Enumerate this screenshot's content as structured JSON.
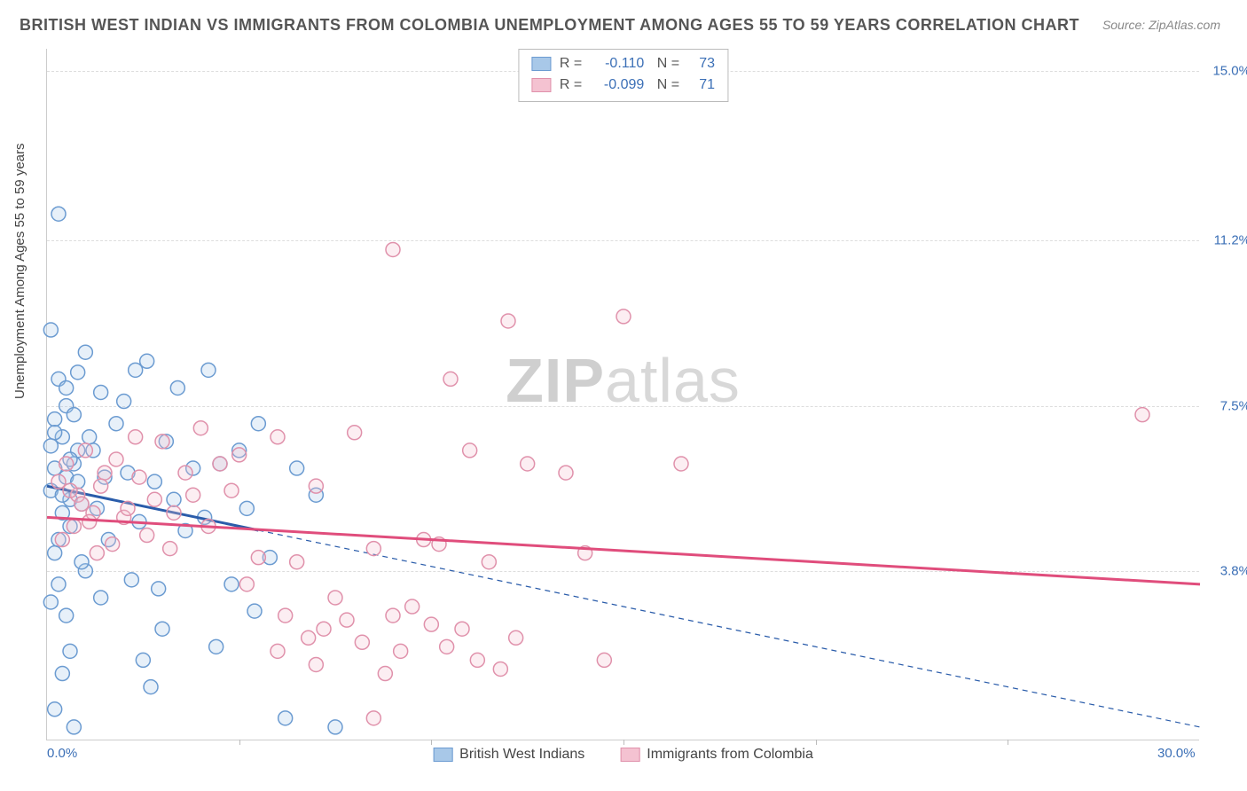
{
  "title": "BRITISH WEST INDIAN VS IMMIGRANTS FROM COLOMBIA UNEMPLOYMENT AMONG AGES 55 TO 59 YEARS CORRELATION CHART",
  "source": "Source: ZipAtlas.com",
  "ylabel": "Unemployment Among Ages 55 to 59 years",
  "watermark_a": "ZIP",
  "watermark_b": "atlas",
  "chart": {
    "type": "scatter",
    "background_color": "#ffffff",
    "grid_color": "#dddddd",
    "axis_label_color": "#3b6fb6",
    "xlim": [
      0,
      30
    ],
    "ylim": [
      0,
      15.5
    ],
    "yticks": [
      {
        "v": 3.8,
        "label": "3.8%"
      },
      {
        "v": 7.5,
        "label": "7.5%"
      },
      {
        "v": 11.2,
        "label": "11.2%"
      },
      {
        "v": 15.0,
        "label": "15.0%"
      }
    ],
    "xticks_minor": [
      5,
      10,
      15,
      20,
      25
    ],
    "xticks": [
      {
        "v": 0,
        "label": "0.0%"
      },
      {
        "v": 30,
        "label": "30.0%"
      }
    ],
    "marker_radius": 8,
    "marker_stroke_width": 1.5,
    "marker_fill_opacity": 0.28
  },
  "series": [
    {
      "name": "British West Indians",
      "color_stroke": "#6b9bd1",
      "color_fill": "#a8c8e8",
      "reg_color": "#2a5caa",
      "reg_width": 3,
      "reg_solid_end_x": 5.5,
      "reg_start_y": 5.7,
      "reg_end_y": 0.3,
      "R": "-0.110",
      "N": "73",
      "points": [
        [
          0.3,
          11.8
        ],
        [
          0.2,
          6.1
        ],
        [
          0.5,
          7.5
        ],
        [
          0.1,
          9.2
        ],
        [
          0.6,
          5.4
        ],
        [
          0.4,
          6.8
        ],
        [
          0.2,
          7.2
        ],
        [
          0.8,
          6.5
        ],
        [
          0.3,
          8.1
        ],
        [
          0.5,
          7.9
        ],
        [
          0.7,
          6.2
        ],
        [
          0.1,
          5.6
        ],
        [
          0.4,
          5.1
        ],
        [
          0.6,
          4.8
        ],
        [
          0.2,
          6.9
        ],
        [
          0.9,
          5.3
        ],
        [
          0.3,
          4.5
        ],
        [
          0.5,
          5.9
        ],
        [
          0.1,
          6.6
        ],
        [
          0.7,
          7.3
        ],
        [
          0.4,
          5.5
        ],
        [
          0.2,
          4.2
        ],
        [
          0.8,
          5.8
        ],
        [
          0.6,
          6.3
        ],
        [
          0.3,
          3.5
        ],
        [
          0.5,
          2.8
        ],
        [
          0.1,
          3.1
        ],
        [
          0.4,
          1.5
        ],
        [
          0.7,
          0.3
        ],
        [
          0.2,
          0.7
        ],
        [
          1.2,
          6.5
        ],
        [
          1.5,
          5.9
        ],
        [
          1.1,
          6.8
        ],
        [
          1.8,
          7.1
        ],
        [
          1.3,
          5.2
        ],
        [
          1.6,
          4.5
        ],
        [
          1.0,
          3.8
        ],
        [
          1.4,
          3.2
        ],
        [
          2.3,
          8.3
        ],
        [
          2.0,
          7.6
        ],
        [
          2.6,
          8.5
        ],
        [
          2.1,
          6.0
        ],
        [
          2.8,
          5.8
        ],
        [
          2.4,
          4.9
        ],
        [
          2.2,
          3.6
        ],
        [
          2.9,
          3.4
        ],
        [
          2.5,
          1.8
        ],
        [
          2.7,
          1.2
        ],
        [
          3.4,
          7.9
        ],
        [
          3.1,
          6.7
        ],
        [
          3.8,
          6.1
        ],
        [
          3.3,
          5.4
        ],
        [
          3.6,
          4.7
        ],
        [
          3.0,
          2.5
        ],
        [
          4.2,
          8.3
        ],
        [
          4.5,
          6.2
        ],
        [
          4.1,
          5.0
        ],
        [
          4.8,
          3.5
        ],
        [
          4.4,
          2.1
        ],
        [
          5.0,
          6.5
        ],
        [
          5.5,
          7.1
        ],
        [
          5.2,
          5.2
        ],
        [
          5.8,
          4.1
        ],
        [
          5.4,
          2.9
        ],
        [
          6.5,
          6.1
        ],
        [
          6.2,
          0.5
        ],
        [
          7.0,
          5.5
        ],
        [
          7.5,
          0.3
        ],
        [
          1.0,
          8.7
        ],
        [
          0.8,
          8.25
        ],
        [
          1.4,
          7.8
        ],
        [
          0.9,
          4.0
        ],
        [
          0.6,
          2.0
        ]
      ]
    },
    {
      "name": "Immigrants from Colombia",
      "color_stroke": "#e091ab",
      "color_fill": "#f4c2d1",
      "reg_color": "#e04d7c",
      "reg_width": 3,
      "reg_solid_end_x": 30,
      "reg_start_y": 5.0,
      "reg_end_y": 3.5,
      "R": "-0.099",
      "N": "71",
      "points": [
        [
          0.5,
          6.2
        ],
        [
          0.8,
          5.5
        ],
        [
          0.3,
          5.8
        ],
        [
          1.2,
          5.1
        ],
        [
          0.7,
          4.8
        ],
        [
          1.0,
          6.5
        ],
        [
          0.4,
          4.5
        ],
        [
          1.5,
          6.0
        ],
        [
          0.9,
          5.3
        ],
        [
          1.3,
          4.2
        ],
        [
          0.6,
          5.6
        ],
        [
          1.1,
          4.9
        ],
        [
          1.8,
          6.3
        ],
        [
          1.4,
          5.7
        ],
        [
          2.0,
          5.0
        ],
        [
          1.7,
          4.4
        ],
        [
          2.3,
          6.8
        ],
        [
          2.1,
          5.2
        ],
        [
          2.6,
          4.6
        ],
        [
          2.4,
          5.9
        ],
        [
          2.8,
          5.4
        ],
        [
          3.0,
          6.7
        ],
        [
          3.3,
          5.1
        ],
        [
          3.6,
          6.0
        ],
        [
          3.2,
          4.3
        ],
        [
          3.8,
          5.5
        ],
        [
          4.0,
          7.0
        ],
        [
          4.5,
          6.2
        ],
        [
          4.2,
          4.8
        ],
        [
          4.8,
          5.6
        ],
        [
          5.0,
          6.4
        ],
        [
          5.5,
          4.1
        ],
        [
          5.2,
          3.5
        ],
        [
          6.0,
          6.8
        ],
        [
          6.5,
          4.0
        ],
        [
          6.2,
          2.8
        ],
        [
          7.0,
          5.7
        ],
        [
          7.5,
          3.2
        ],
        [
          7.2,
          2.5
        ],
        [
          8.0,
          6.9
        ],
        [
          8.5,
          4.3
        ],
        [
          8.2,
          2.2
        ],
        [
          9.0,
          11.0
        ],
        [
          9.5,
          3.0
        ],
        [
          9.2,
          2.0
        ],
        [
          8.8,
          1.5
        ],
        [
          9.8,
          4.5
        ],
        [
          10.5,
          8.1
        ],
        [
          10.2,
          4.4
        ],
        [
          10.8,
          2.5
        ],
        [
          11.0,
          6.5
        ],
        [
          11.5,
          4.0
        ],
        [
          11.2,
          1.8
        ],
        [
          12.0,
          9.4
        ],
        [
          12.5,
          6.2
        ],
        [
          12.2,
          2.3
        ],
        [
          11.8,
          1.6
        ],
        [
          9.0,
          2.8
        ],
        [
          10.0,
          2.6
        ],
        [
          10.4,
          2.1
        ],
        [
          8.5,
          0.5
        ],
        [
          7.8,
          2.7
        ],
        [
          6.8,
          2.3
        ],
        [
          13.5,
          6.0
        ],
        [
          14.0,
          4.2
        ],
        [
          15.0,
          9.5
        ],
        [
          14.5,
          1.8
        ],
        [
          16.5,
          6.2
        ],
        [
          28.5,
          7.3
        ],
        [
          6.0,
          2.0
        ],
        [
          7.0,
          1.7
        ]
      ]
    }
  ],
  "bottom_legend": [
    {
      "label": "British West Indians",
      "series": 0
    },
    {
      "label": "Immigrants from Colombia",
      "series": 1
    }
  ]
}
